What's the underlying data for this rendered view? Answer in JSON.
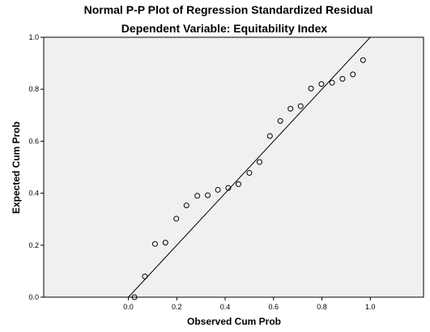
{
  "chart_data": {
    "type": "scatter",
    "title": "Normal P-P Plot of Regression Standardized Residual",
    "subtitle": "Dependent Variable: Equitability Index",
    "xlabel": "Observed Cum Prob",
    "ylabel": "Expected Cum Prob",
    "xlim": [
      -0.35,
      1.22
    ],
    "ylim": [
      0.0,
      1.0
    ],
    "x_ticks": [
      0.0,
      0.2,
      0.4,
      0.6,
      0.8,
      1.0
    ],
    "x_tick_labels": [
      "0.0",
      "0.2",
      "0.4",
      "0.6",
      "0.8",
      "1.0"
    ],
    "y_ticks": [
      0.0,
      0.2,
      0.4,
      0.6,
      0.8,
      1.0
    ],
    "y_tick_labels": [
      "0.0",
      "0.2",
      "0.4",
      "0.6",
      "0.8",
      "1.0"
    ],
    "grid": false,
    "reference_line": {
      "from": [
        0,
        0
      ],
      "to": [
        1,
        1
      ]
    },
    "points": [
      {
        "x": 0.025,
        "y": 0.0
      },
      {
        "x": 0.068,
        "y": 0.08
      },
      {
        "x": 0.11,
        "y": 0.205
      },
      {
        "x": 0.153,
        "y": 0.21
      },
      {
        "x": 0.198,
        "y": 0.302
      },
      {
        "x": 0.24,
        "y": 0.353
      },
      {
        "x": 0.285,
        "y": 0.39
      },
      {
        "x": 0.328,
        "y": 0.392
      },
      {
        "x": 0.37,
        "y": 0.413
      },
      {
        "x": 0.413,
        "y": 0.42
      },
      {
        "x": 0.455,
        "y": 0.435
      },
      {
        "x": 0.5,
        "y": 0.478
      },
      {
        "x": 0.542,
        "y": 0.52
      },
      {
        "x": 0.585,
        "y": 0.62
      },
      {
        "x": 0.628,
        "y": 0.678
      },
      {
        "x": 0.67,
        "y": 0.725
      },
      {
        "x": 0.712,
        "y": 0.735
      },
      {
        "x": 0.755,
        "y": 0.803
      },
      {
        "x": 0.798,
        "y": 0.82
      },
      {
        "x": 0.842,
        "y": 0.825
      },
      {
        "x": 0.885,
        "y": 0.84
      },
      {
        "x": 0.928,
        "y": 0.857
      },
      {
        "x": 0.97,
        "y": 0.912
      }
    ],
    "colors": {
      "background": "#ffffff",
      "plot_area": "#f0f0f0",
      "ink": "#000000"
    }
  }
}
